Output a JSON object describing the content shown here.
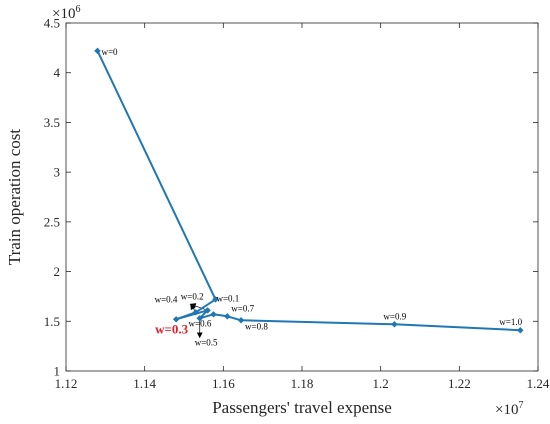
{
  "chart_data": {
    "type": "line",
    "title": "",
    "xlabel": "Passengers' travel expense",
    "ylabel": "Train operation cost",
    "x_exponent": "×10",
    "x_exponent_power": "7",
    "y_exponent": "×10",
    "y_exponent_power": "6",
    "x_scale_factor": 10000000,
    "y_scale_factor": 1000000,
    "xlim": [
      1.12,
      1.24
    ],
    "ylim": [
      1,
      4.5
    ],
    "x_ticks": [
      "1.12",
      "1.14",
      "1.16",
      "1.18",
      "1.2",
      "1.22",
      "1.24"
    ],
    "y_ticks": [
      "1",
      "1.5",
      "2",
      "2.5",
      "3",
      "3.5",
      "4",
      "4.5"
    ],
    "grid": false,
    "line_color": "#1f77b4",
    "highlight_color": "#e0202a",
    "series": [
      {
        "points": [
          {
            "x": 1.128,
            "y": 4.22,
            "label": "w=0"
          },
          {
            "x": 1.158,
            "y": 1.72,
            "label": "w=0.1"
          },
          {
            "x": 1.153,
            "y": 1.59,
            "label": "w=0.2"
          },
          {
            "x": 1.148,
            "y": 1.52,
            "label": "w=0.3"
          },
          {
            "x": 1.156,
            "y": 1.61,
            "label": "w=0.4"
          },
          {
            "x": 1.154,
            "y": 1.53,
            "label": "w=0.5"
          },
          {
            "x": 1.1575,
            "y": 1.57,
            "label": "w=0.6"
          },
          {
            "x": 1.161,
            "y": 1.55,
            "label": "w=0.7"
          },
          {
            "x": 1.1645,
            "y": 1.51,
            "label": "w=0.8"
          },
          {
            "x": 1.2035,
            "y": 1.47,
            "label": "w=0.9"
          },
          {
            "x": 1.2355,
            "y": 1.41,
            "label": "w=1.0"
          }
        ]
      }
    ]
  }
}
